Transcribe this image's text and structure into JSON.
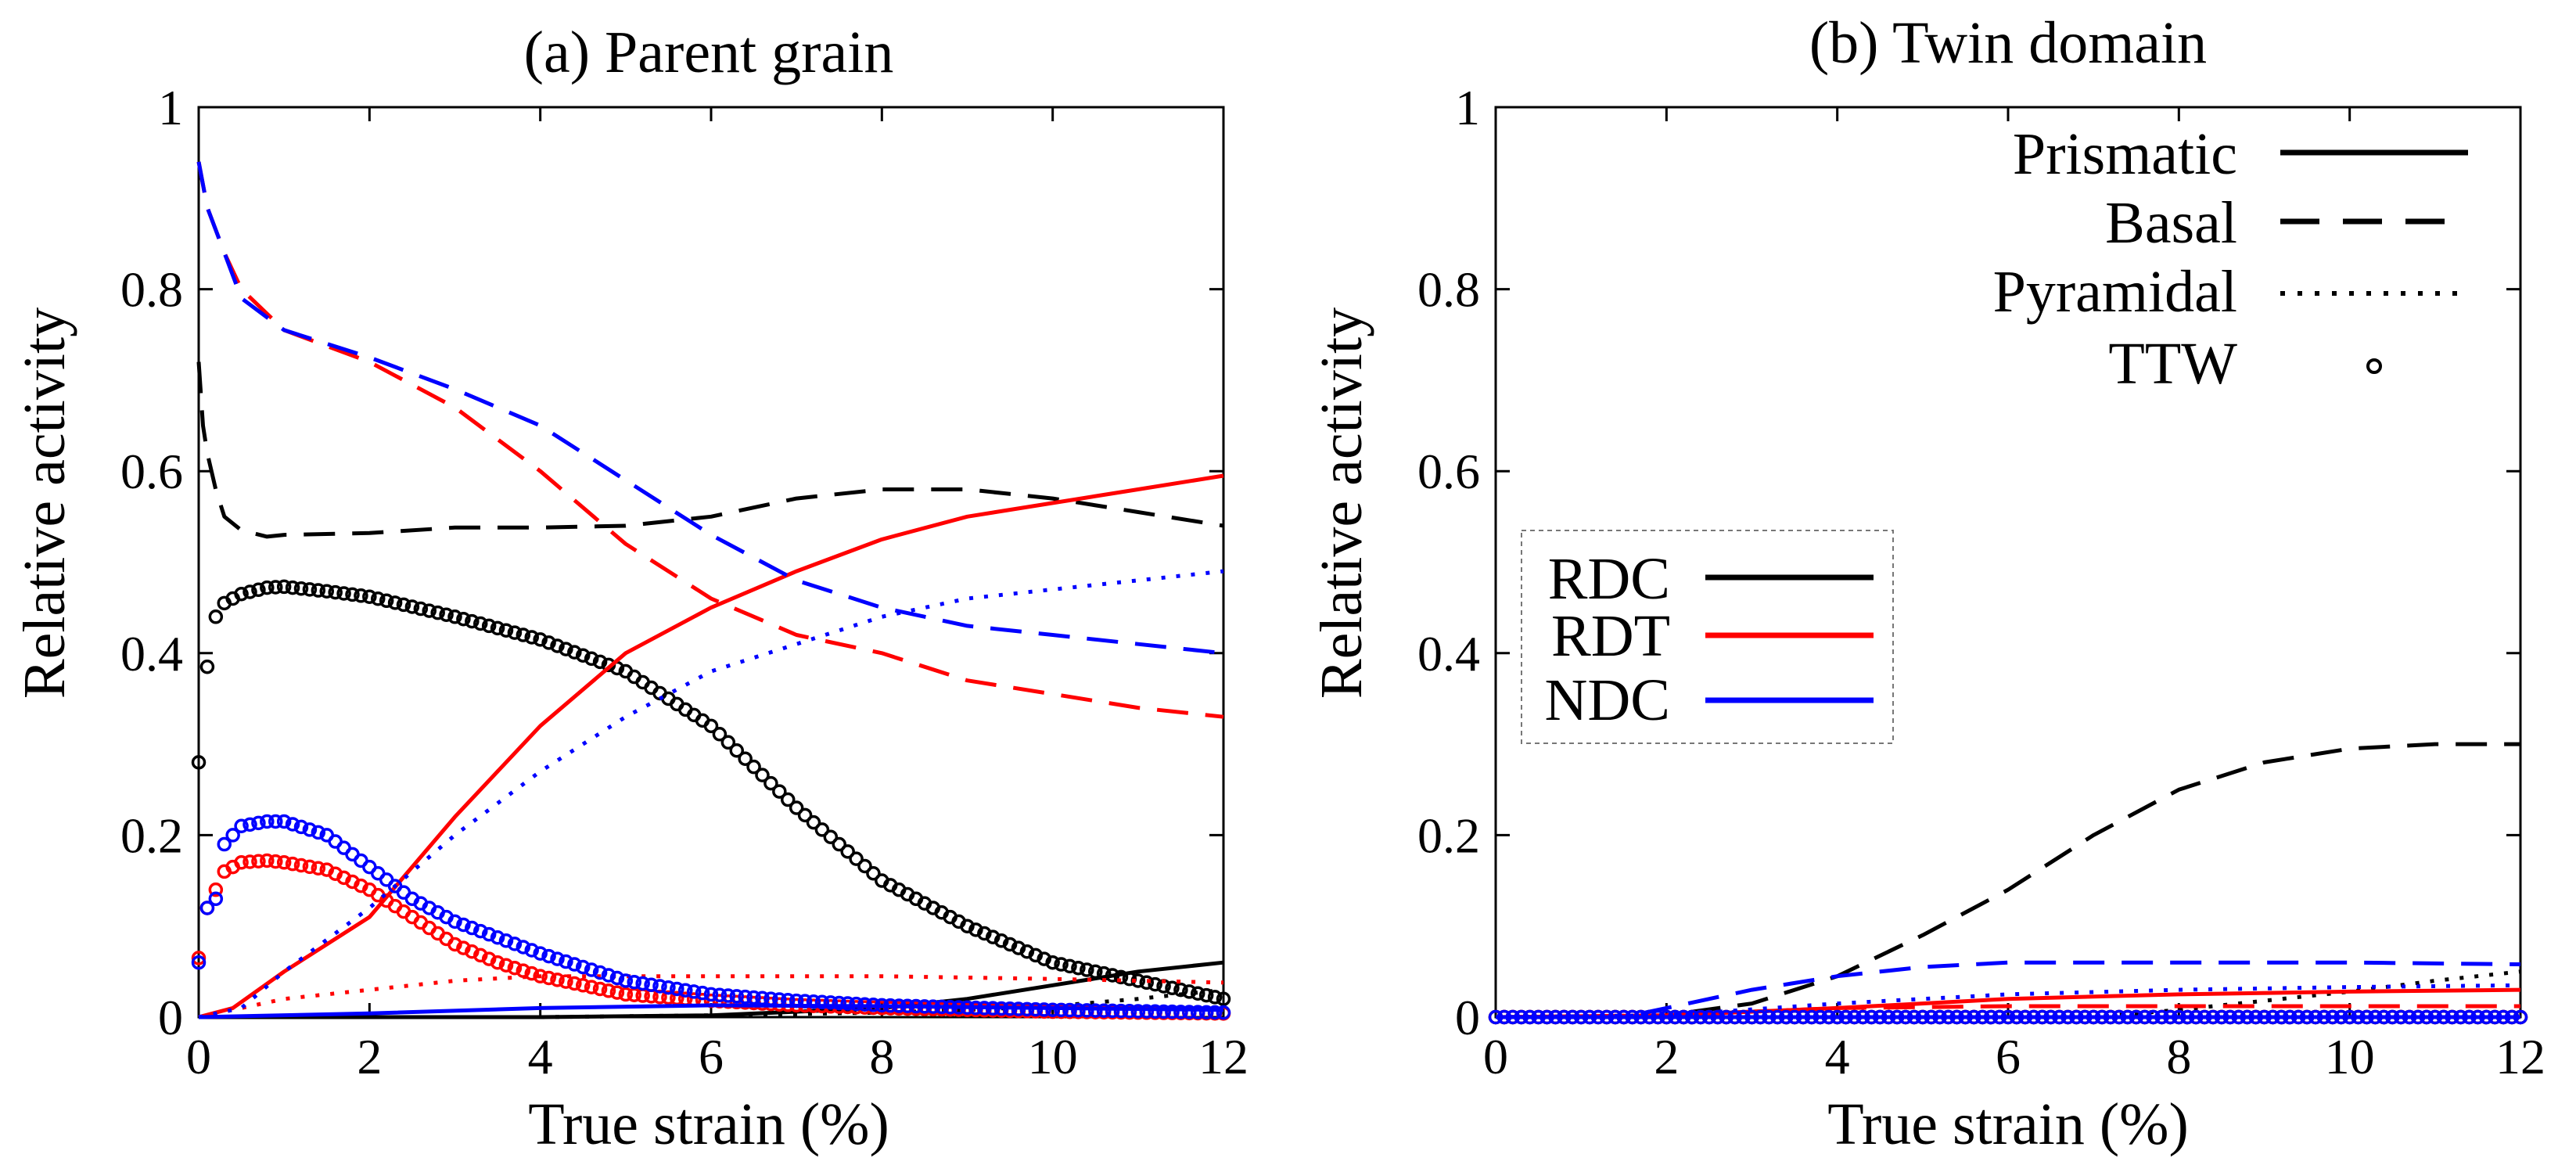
{
  "chart_data": [
    {
      "panel": "a",
      "type": "line",
      "title": "(a) Parent grain",
      "xlabel": "True strain (%)",
      "ylabel": "Relative activity",
      "xlim": [
        0,
        12
      ],
      "ylim": [
        0,
        1
      ],
      "xticks": [
        "0",
        "2",
        "4",
        "6",
        "8",
        "10",
        "12"
      ],
      "yticks": [
        "0",
        "0.2",
        "0.4",
        "0.6",
        "0.8",
        "1"
      ],
      "series": [
        {
          "name": "RDC Prismatic",
          "loading": "RDC",
          "mode": "Prismatic",
          "x": [
            0,
            2,
            4,
            6,
            8,
            9,
            10,
            11,
            12
          ],
          "y": [
            0,
            0,
            0,
            0.002,
            0.01,
            0.02,
            0.035,
            0.05,
            0.06
          ]
        },
        {
          "name": "RDC Basal",
          "loading": "RDC",
          "mode": "Basal",
          "x": [
            0,
            0.05,
            0.1,
            0.2,
            0.3,
            0.5,
            0.8,
            1,
            2,
            3,
            4,
            5,
            6,
            7,
            8,
            9,
            10,
            11,
            12
          ],
          "y": [
            0.72,
            0.65,
            0.62,
            0.58,
            0.55,
            0.535,
            0.528,
            0.53,
            0.532,
            0.538,
            0.538,
            0.54,
            0.55,
            0.57,
            0.58,
            0.58,
            0.57,
            0.555,
            0.54
          ]
        },
        {
          "name": "RDC Pyramidal",
          "loading": "RDC",
          "mode": "Pyramidal",
          "x": [
            0,
            4,
            6,
            8,
            9,
            10,
            11,
            12
          ],
          "y": [
            0,
            0,
            0.002,
            0.005,
            0.008,
            0.012,
            0.02,
            0.03
          ]
        },
        {
          "name": "RDC TTW",
          "loading": "RDC",
          "mode": "TTW",
          "x": [
            0,
            0.05,
            0.1,
            0.2,
            0.3,
            0.5,
            0.8,
            1,
            1.5,
            2,
            3,
            4,
            5,
            6,
            7,
            8,
            9,
            10,
            11,
            12
          ],
          "y": [
            0.28,
            0.38,
            0.385,
            0.44,
            0.455,
            0.465,
            0.472,
            0.473,
            0.468,
            0.462,
            0.44,
            0.415,
            0.38,
            0.32,
            0.23,
            0.15,
            0.1,
            0.06,
            0.04,
            0.02
          ]
        },
        {
          "name": "RDT Prismatic",
          "loading": "RDT",
          "mode": "Prismatic",
          "x": [
            0,
            0.4,
            1,
            2,
            3,
            4,
            5,
            6,
            7,
            8,
            9,
            10,
            11,
            12
          ],
          "y": [
            0,
            0.01,
            0.05,
            0.11,
            0.22,
            0.32,
            0.4,
            0.45,
            0.49,
            0.525,
            0.55,
            0.565,
            0.58,
            0.595
          ]
        },
        {
          "name": "RDT Basal",
          "loading": "RDT",
          "mode": "Basal",
          "x": [
            0,
            0.1,
            0.3,
            0.5,
            1,
            2,
            3,
            4,
            5,
            6,
            7,
            8,
            9,
            10,
            11,
            12
          ],
          "y": [
            0.94,
            0.89,
            0.84,
            0.8,
            0.755,
            0.72,
            0.67,
            0.6,
            0.52,
            0.46,
            0.42,
            0.4,
            0.37,
            0.355,
            0.34,
            0.33
          ]
        },
        {
          "name": "RDT Pyramidal",
          "loading": "RDT",
          "mode": "Pyramidal",
          "x": [
            0,
            0.5,
            1,
            2,
            3,
            4,
            6,
            8,
            10,
            12
          ],
          "y": [
            0,
            0.01,
            0.02,
            0.03,
            0.04,
            0.045,
            0.045,
            0.045,
            0.042,
            0.038
          ]
        },
        {
          "name": "RDT TTW",
          "loading": "RDT",
          "mode": "TTW",
          "x": [
            0,
            0.1,
            0.2,
            0.3,
            0.5,
            0.8,
            1,
            1.5,
            2,
            2.5,
            3,
            3.5,
            4,
            5,
            6,
            7,
            8,
            10,
            12
          ],
          "y": [
            0.065,
            0.12,
            0.14,
            0.16,
            0.17,
            0.172,
            0.17,
            0.162,
            0.14,
            0.11,
            0.08,
            0.06,
            0.045,
            0.025,
            0.018,
            0.013,
            0.01,
            0.006,
            0.004
          ]
        },
        {
          "name": "NDC Prismatic",
          "loading": "NDC",
          "mode": "Prismatic",
          "x": [
            0,
            2,
            4,
            6,
            8,
            10,
            12
          ],
          "y": [
            0,
            0.004,
            0.01,
            0.013,
            0.012,
            0.01,
            0.008
          ]
        },
        {
          "name": "NDC Basal",
          "loading": "NDC",
          "mode": "Basal",
          "x": [
            0,
            0.1,
            0.3,
            0.5,
            1,
            2,
            3,
            4,
            5,
            6,
            7,
            8,
            9,
            10,
            11,
            12
          ],
          "y": [
            0.94,
            0.89,
            0.84,
            0.79,
            0.755,
            0.725,
            0.69,
            0.65,
            0.59,
            0.53,
            0.48,
            0.45,
            0.43,
            0.42,
            0.41,
            0.4
          ]
        },
        {
          "name": "NDC Pyramidal",
          "loading": "NDC",
          "mode": "Pyramidal",
          "x": [
            0,
            0.5,
            1,
            2,
            3,
            4,
            5,
            6,
            7,
            8,
            9,
            10,
            11,
            12
          ],
          "y": [
            0,
            0.01,
            0.05,
            0.12,
            0.2,
            0.27,
            0.33,
            0.38,
            0.41,
            0.44,
            0.46,
            0.47,
            0.48,
            0.49
          ]
        },
        {
          "name": "NDC TTW",
          "loading": "NDC",
          "mode": "TTW",
          "x": [
            0,
            0.1,
            0.2,
            0.3,
            0.5,
            0.8,
            1,
            1.5,
            2,
            2.5,
            3,
            4,
            5,
            6,
            7,
            8,
            10,
            12
          ],
          "y": [
            0.06,
            0.12,
            0.13,
            0.19,
            0.21,
            0.215,
            0.215,
            0.2,
            0.165,
            0.13,
            0.105,
            0.07,
            0.04,
            0.025,
            0.018,
            0.013,
            0.008,
            0.005
          ]
        }
      ]
    },
    {
      "panel": "b",
      "type": "line",
      "title": "(b) Twin domain",
      "xlabel": "True strain (%)",
      "ylabel": "Relative activity",
      "xlim": [
        0,
        12
      ],
      "ylim": [
        0,
        1
      ],
      "xticks": [
        "0",
        "2",
        "4",
        "6",
        "8",
        "10",
        "12"
      ],
      "yticks": [
        "0",
        "0.2",
        "0.4",
        "0.6",
        "0.8",
        "1"
      ],
      "series": [
        {
          "name": "RDC Prismatic",
          "loading": "RDC",
          "mode": "Prismatic",
          "x": [
            0,
            12
          ],
          "y": [
            0,
            0
          ]
        },
        {
          "name": "RDC Basal",
          "loading": "RDC",
          "mode": "Basal",
          "x": [
            0,
            1.5,
            2,
            3,
            4,
            5,
            6,
            7,
            8,
            9,
            10,
            11,
            12
          ],
          "y": [
            0,
            0,
            0.002,
            0.015,
            0.045,
            0.09,
            0.14,
            0.2,
            0.25,
            0.28,
            0.295,
            0.3,
            0.3
          ]
        },
        {
          "name": "RDC Pyramidal",
          "loading": "RDC",
          "mode": "Pyramidal",
          "x": [
            0,
            7,
            8,
            9,
            10,
            11,
            12
          ],
          "y": [
            0,
            0,
            0.008,
            0.018,
            0.028,
            0.04,
            0.05
          ]
        },
        {
          "name": "RDC TTW",
          "loading": "RDC",
          "mode": "TTW",
          "x": [
            0,
            12
          ],
          "y": [
            0,
            0
          ]
        },
        {
          "name": "RDT Prismatic",
          "loading": "RDT",
          "mode": "Prismatic",
          "x": [
            0,
            2,
            4,
            6,
            8,
            10,
            12
          ],
          "y": [
            0,
            0.002,
            0.01,
            0.02,
            0.025,
            0.028,
            0.03
          ]
        },
        {
          "name": "RDT Basal",
          "loading": "RDT",
          "mode": "Basal",
          "x": [
            0,
            2,
            4,
            6,
            8,
            10,
            12
          ],
          "y": [
            0,
            0.002,
            0.01,
            0.012,
            0.012,
            0.012,
            0.012
          ]
        },
        {
          "name": "RDT Pyramidal",
          "loading": "RDT",
          "mode": "Pyramidal",
          "x": [
            0,
            12
          ],
          "y": [
            0,
            0
          ]
        },
        {
          "name": "RDT TTW",
          "loading": "RDT",
          "mode": "TTW",
          "x": [
            0,
            12
          ],
          "y": [
            0,
            0
          ]
        },
        {
          "name": "NDC Prismatic",
          "loading": "NDC",
          "mode": "Prismatic",
          "x": [
            0,
            12
          ],
          "y": [
            0,
            0
          ]
        },
        {
          "name": "NDC Basal",
          "loading": "NDC",
          "mode": "Basal",
          "x": [
            0,
            1.5,
            2,
            3,
            4,
            5,
            6,
            8,
            10,
            12
          ],
          "y": [
            0,
            0,
            0.01,
            0.03,
            0.045,
            0.055,
            0.06,
            0.06,
            0.06,
            0.058
          ]
        },
        {
          "name": "NDC Pyramidal",
          "loading": "NDC",
          "mode": "Pyramidal",
          "x": [
            0,
            2,
            4,
            6,
            8,
            10,
            12
          ],
          "y": [
            0,
            0.002,
            0.015,
            0.025,
            0.03,
            0.033,
            0.035
          ]
        },
        {
          "name": "NDC TTW",
          "loading": "NDC",
          "mode": "TTW",
          "x": [
            0,
            12
          ],
          "y": [
            0,
            0
          ]
        }
      ]
    }
  ],
  "legends": {
    "modes": {
      "location": "top-right of panel (b)",
      "entries": [
        {
          "label": "Prismatic",
          "style": "solid"
        },
        {
          "label": "Basal",
          "style": "dashed"
        },
        {
          "label": "Pyramidal",
          "style": "dotted"
        },
        {
          "label": "TTW",
          "style": "circle"
        }
      ]
    },
    "loadings": {
      "location": "middle-left of panel (b)",
      "entries": [
        {
          "label": "RDC",
          "color": "#000000"
        },
        {
          "label": "RDT",
          "color": "#ff0000"
        },
        {
          "label": "NDC",
          "color": "#0000ff"
        }
      ]
    }
  },
  "colors": {
    "RDC": "#000000",
    "RDT": "#ff0000",
    "NDC": "#0000ff"
  }
}
